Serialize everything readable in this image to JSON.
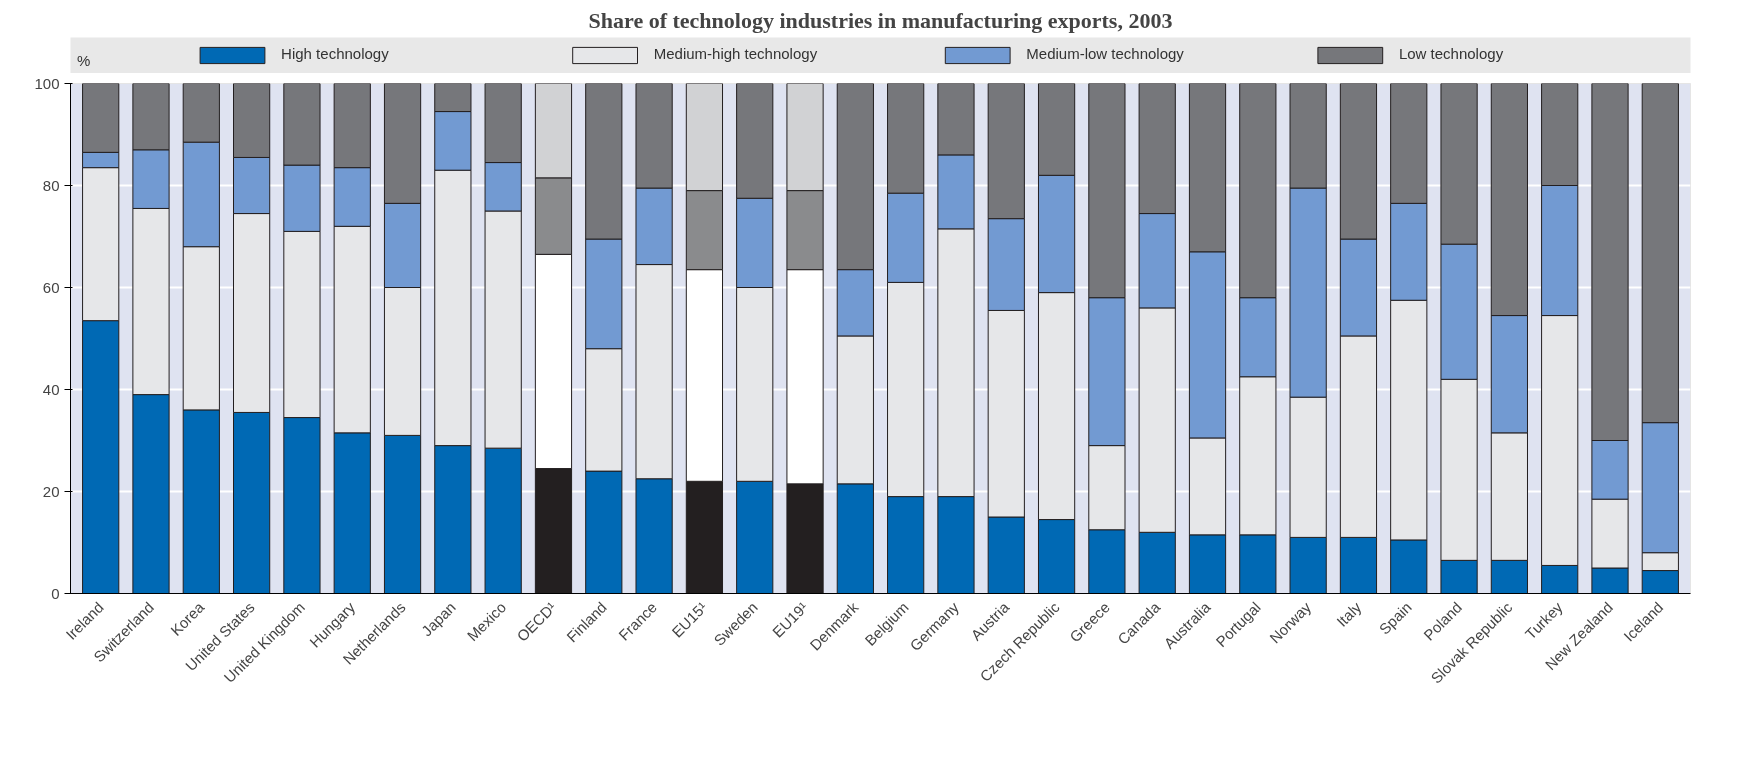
{
  "chart_data": {
    "type": "bar",
    "stacked": true,
    "title": "Share of technology industries in manufacturing exports, 2003",
    "ylabel": "%",
    "categories": [
      "Ireland",
      "Switzerland",
      "Korea",
      "United States",
      "United Kingdom",
      "Hungary",
      "Netherlands",
      "Japan",
      "Mexico",
      "OECD¹",
      "Finland",
      "France",
      "EU15¹",
      "Sweden",
      "EU19¹",
      "Denmark",
      "Belgium",
      "Germany",
      "Austria",
      "Czech Republic",
      "Greece",
      "Canada",
      "Australia",
      "Portugal",
      "Norway",
      "Italy",
      "Spain",
      "Poland",
      "Slovak Republic",
      "Turkey",
      "New Zealand",
      "Iceland"
    ],
    "series": [
      {
        "name": "High technology",
        "color": "#0069b4",
        "colors": [
          "#0069b4",
          "#0069b4",
          "#0069b4",
          "#0069b4",
          "#0069b4",
          "#0069b4",
          "#0069b4",
          "#0069b4",
          "#0069b4",
          "#231f20",
          "#0069b4",
          "#0069b4",
          "#231f20",
          "#0069b4",
          "#231f20",
          "#0069b4",
          "#0069b4",
          "#0069b4",
          "#0069b4",
          "#0069b4",
          "#0069b4",
          "#0069b4",
          "#0069b4",
          "#0069b4",
          "#0069b4",
          "#0069b4",
          "#0069b4",
          "#0069b4",
          "#0069b4",
          "#0069b4",
          "#0069b4",
          "#0069b4"
        ],
        "values": [
          53.5,
          39,
          36,
          35.5,
          34.5,
          31.5,
          31,
          29,
          28.5,
          24.5,
          24,
          22.5,
          22,
          22,
          21.5,
          21.5,
          19,
          19,
          15,
          14.5,
          12.5,
          12,
          11.5,
          11.5,
          11,
          11,
          10.5,
          6.5,
          6.5,
          5.5,
          5,
          4.5
        ]
      },
      {
        "name": "Medium-high technology",
        "color": "#e6e7e9",
        "colors": [
          "#e6e7e9",
          "#e6e7e9",
          "#e6e7e9",
          "#e6e7e9",
          "#e6e7e9",
          "#e6e7e9",
          "#e6e7e9",
          "#e6e7e9",
          "#e6e7e9",
          "#ffffff",
          "#e6e7e9",
          "#e6e7e9",
          "#ffffff",
          "#e6e7e9",
          "#ffffff",
          "#e6e7e9",
          "#e6e7e9",
          "#e6e7e9",
          "#e6e7e9",
          "#e6e7e9",
          "#e6e7e9",
          "#e6e7e9",
          "#e6e7e9",
          "#e6e7e9",
          "#e6e7e9",
          "#e6e7e9",
          "#e6e7e9",
          "#e6e7e9",
          "#e6e7e9",
          "#e6e7e9",
          "#e6e7e9",
          "#e6e7e9"
        ],
        "values": [
          30,
          36.5,
          32,
          39,
          36.5,
          40.5,
          29,
          54,
          46.5,
          42,
          24,
          42,
          41.5,
          38,
          42,
          29,
          42,
          52.5,
          40.5,
          44.5,
          16.5,
          44,
          19,
          31,
          27.5,
          39.5,
          47,
          35.5,
          25,
          49,
          13.5,
          3.5
        ]
      },
      {
        "name": "Medium-low technology",
        "color": "#729ad2",
        "colors": [
          "#729ad2",
          "#729ad2",
          "#729ad2",
          "#729ad2",
          "#729ad2",
          "#729ad2",
          "#729ad2",
          "#729ad2",
          "#729ad2",
          "#8a8b8d",
          "#729ad2",
          "#729ad2",
          "#8a8b8d",
          "#729ad2",
          "#8a8b8d",
          "#729ad2",
          "#729ad2",
          "#729ad2",
          "#729ad2",
          "#729ad2",
          "#729ad2",
          "#729ad2",
          "#729ad2",
          "#729ad2",
          "#729ad2",
          "#729ad2",
          "#729ad2",
          "#729ad2",
          "#729ad2",
          "#729ad2",
          "#729ad2",
          "#729ad2"
        ],
        "values": [
          3,
          11.5,
          20.5,
          11,
          13,
          11.5,
          16.5,
          11.5,
          9.5,
          15,
          21.5,
          15,
          15.5,
          17.5,
          15.5,
          13,
          17.5,
          14.5,
          18,
          23,
          29,
          18.5,
          36.5,
          15.5,
          41,
          19,
          19,
          26.5,
          23,
          25.5,
          11.5,
          25.5
        ]
      },
      {
        "name": "Low technology",
        "color": "#76777b",
        "colors": [
          "#76777b",
          "#76777b",
          "#76777b",
          "#76777b",
          "#76777b",
          "#76777b",
          "#76777b",
          "#76777b",
          "#76777b",
          "#d1d2d4",
          "#76777b",
          "#76777b",
          "#d1d2d4",
          "#76777b",
          "#d1d2d4",
          "#76777b",
          "#76777b",
          "#76777b",
          "#76777b",
          "#76777b",
          "#76777b",
          "#76777b",
          "#76777b",
          "#76777b",
          "#76777b",
          "#76777b",
          "#76777b",
          "#76777b",
          "#76777b",
          "#76777b",
          "#76777b",
          "#76777b"
        ],
        "values": [
          13.5,
          13,
          11.5,
          14.5,
          16,
          16.5,
          23.5,
          5.5,
          15.5,
          18.5,
          30.5,
          20.5,
          21,
          22.5,
          21,
          36.5,
          21.5,
          14,
          26.5,
          18,
          42,
          25.5,
          33,
          42,
          20.5,
          30.5,
          23.5,
          31.5,
          45.5,
          20,
          70,
          66.5
        ]
      }
    ],
    "ylim": [
      0,
      100
    ],
    "yticks": [
      0,
      20,
      40,
      60,
      80,
      100
    ],
    "grid": "y",
    "legend": "top"
  }
}
